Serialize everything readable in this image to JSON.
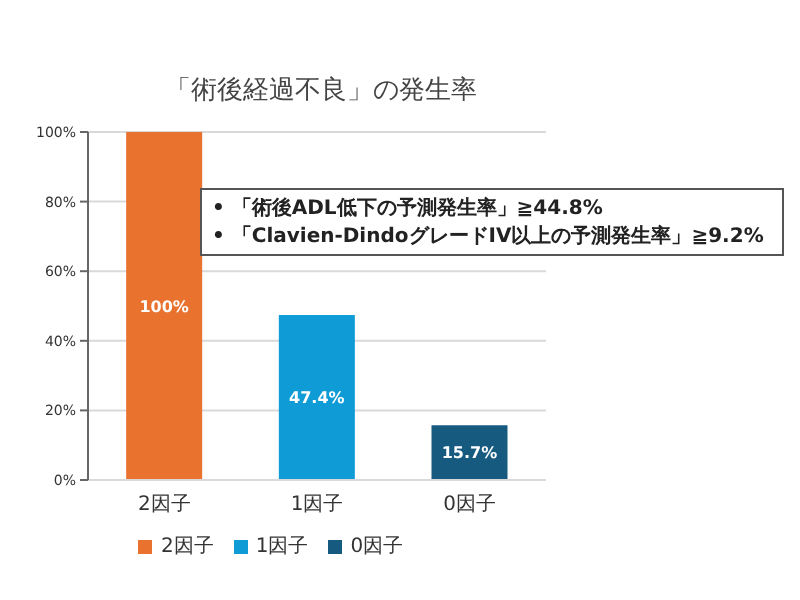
{
  "chart_data": {
    "type": "bar",
    "title": "「術後経過不良」の発生率",
    "categories": [
      "2因子",
      "1因子",
      "0因子"
    ],
    "series": [
      {
        "name": "2因子",
        "color": "#e8722e",
        "values": [
          100,
          null,
          null
        ],
        "value_labels": [
          "100%",
          null,
          null
        ]
      },
      {
        "name": "1因子",
        "color": "#0e9bd6",
        "values": [
          null,
          47.4,
          null
        ],
        "value_labels": [
          null,
          "47.4%",
          null
        ]
      },
      {
        "name": "0因子",
        "color": "#175a80",
        "values": [
          null,
          null,
          15.7
        ],
        "value_labels": [
          null,
          null,
          "15.7%"
        ]
      }
    ],
    "ylim": [
      0,
      100
    ],
    "yticks": [
      {
        "value": 0,
        "label": "0%"
      },
      {
        "value": 20,
        "label": "20%"
      },
      {
        "value": 40,
        "label": "40%"
      },
      {
        "value": 60,
        "label": "60%"
      },
      {
        "value": 80,
        "label": "80%"
      },
      {
        "value": 100,
        "label": "100%"
      }
    ],
    "grid": "y",
    "legend": "bottom",
    "annotations": [
      "• 「術後ADL低下の予測発生率」≧44.8%",
      "• 「Clavien-DindoグレードIV以上の予測発生率」≧9.2%"
    ]
  }
}
